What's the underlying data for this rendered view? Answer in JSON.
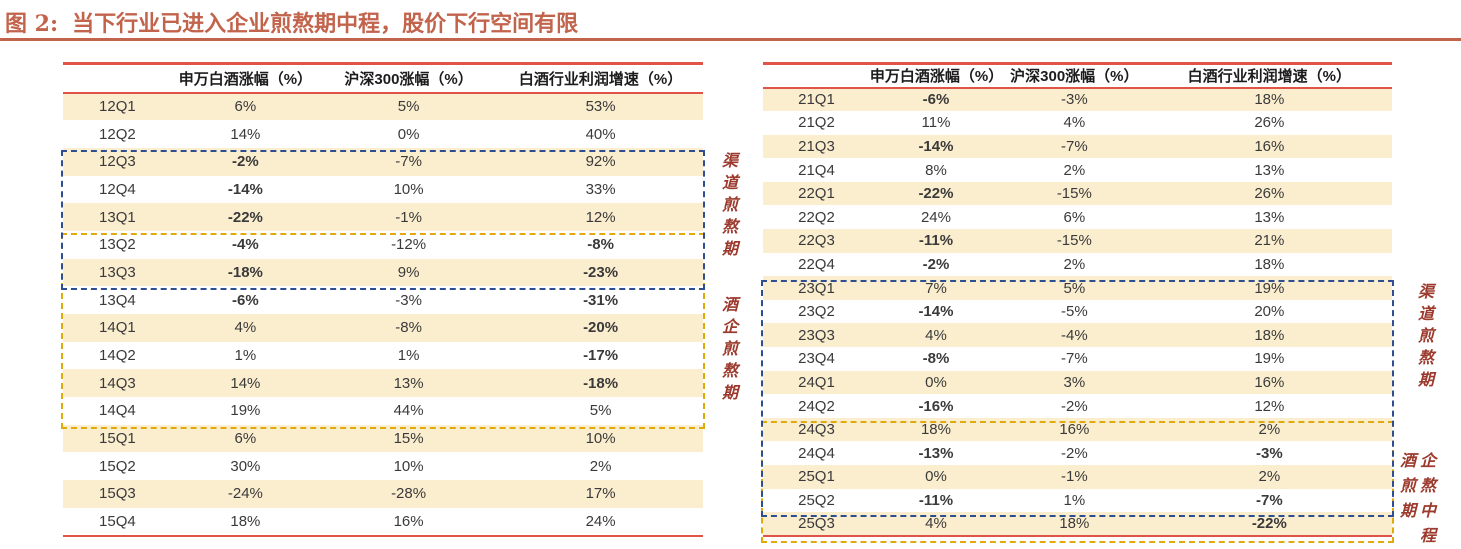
{
  "title": {
    "prefix": "图 2:",
    "text": "当下行业已进入企业煎熬期中程，股价下行空间有限"
  },
  "colors": {
    "accent": "#C2634B",
    "table_rule_red": "#DF5348",
    "row_cream": "#FBEECF",
    "negative_red": "#F70A0A",
    "box_blue": "#2D4F90",
    "box_yellow": "#E2A90C",
    "side_label_red": "#9C3A2E",
    "cell_text": "#3A3A3A"
  },
  "annotations": {
    "left_channel_label": "渠道煎熬期",
    "left_enterprise_label": "酒企煎熬期",
    "right_channel_label": "渠道煎熬期",
    "right_mid_label_lines": [
      "酒企",
      "煎熬",
      "期中",
      "程"
    ]
  },
  "left_table": {
    "headers": [
      "申万白酒涨幅（%）",
      "沪深300涨幅（%）",
      "白酒行业利润增速（%）"
    ],
    "rows": [
      {
        "q": "12Q1",
        "v": [
          "6%",
          "5%",
          "53%"
        ],
        "r": [
          0,
          0,
          0
        ]
      },
      {
        "q": "12Q2",
        "v": [
          "14%",
          "0%",
          "40%"
        ],
        "r": [
          0,
          0,
          0
        ]
      },
      {
        "q": "12Q3",
        "v": [
          "-2%",
          "-7%",
          "92%"
        ],
        "r": [
          1,
          0,
          0
        ]
      },
      {
        "q": "12Q4",
        "v": [
          "-14%",
          "10%",
          "33%"
        ],
        "r": [
          1,
          0,
          0
        ]
      },
      {
        "q": "13Q1",
        "v": [
          "-22%",
          "-1%",
          "12%"
        ],
        "r": [
          1,
          0,
          0
        ]
      },
      {
        "q": "13Q2",
        "v": [
          "-4%",
          "-12%",
          "-8%"
        ],
        "r": [
          1,
          0,
          1
        ]
      },
      {
        "q": "13Q3",
        "v": [
          "-18%",
          "9%",
          "-23%"
        ],
        "r": [
          1,
          0,
          1
        ]
      },
      {
        "q": "13Q4",
        "v": [
          "-6%",
          "-3%",
          "-31%"
        ],
        "r": [
          1,
          0,
          1
        ]
      },
      {
        "q": "14Q1",
        "v": [
          "4%",
          "-8%",
          "-20%"
        ],
        "r": [
          0,
          0,
          1
        ]
      },
      {
        "q": "14Q2",
        "v": [
          "1%",
          "1%",
          "-17%"
        ],
        "r": [
          0,
          0,
          1
        ]
      },
      {
        "q": "14Q3",
        "v": [
          "14%",
          "13%",
          "-18%"
        ],
        "r": [
          0,
          0,
          1
        ]
      },
      {
        "q": "14Q4",
        "v": [
          "19%",
          "44%",
          "5%"
        ],
        "r": [
          0,
          0,
          0
        ]
      },
      {
        "q": "15Q1",
        "v": [
          "6%",
          "15%",
          "10%"
        ],
        "r": [
          0,
          0,
          0
        ]
      },
      {
        "q": "15Q2",
        "v": [
          "30%",
          "10%",
          "2%"
        ],
        "r": [
          0,
          0,
          0
        ]
      },
      {
        "q": "15Q3",
        "v": [
          "-24%",
          "-28%",
          "17%"
        ],
        "r": [
          0,
          0,
          0
        ]
      },
      {
        "q": "15Q4",
        "v": [
          "18%",
          "16%",
          "24%"
        ],
        "r": [
          0,
          0,
          0
        ]
      }
    ]
  },
  "right_table": {
    "headers": [
      "申万白酒涨幅（%）",
      "沪深300涨幅（%）",
      "白酒行业利润增速（%）"
    ],
    "rows": [
      {
        "q": "21Q1",
        "v": [
          "-6%",
          "-3%",
          "18%"
        ],
        "r": [
          1,
          0,
          0
        ]
      },
      {
        "q": "21Q2",
        "v": [
          "11%",
          "4%",
          "26%"
        ],
        "r": [
          0,
          0,
          0
        ]
      },
      {
        "q": "21Q3",
        "v": [
          "-14%",
          "-7%",
          "16%"
        ],
        "r": [
          1,
          0,
          0
        ]
      },
      {
        "q": "21Q4",
        "v": [
          "8%",
          "2%",
          "13%"
        ],
        "r": [
          0,
          0,
          0
        ]
      },
      {
        "q": "22Q1",
        "v": [
          "-22%",
          "-15%",
          "26%"
        ],
        "r": [
          1,
          0,
          0
        ]
      },
      {
        "q": "22Q2",
        "v": [
          "24%",
          "6%",
          "13%"
        ],
        "r": [
          0,
          0,
          0
        ]
      },
      {
        "q": "22Q3",
        "v": [
          "-11%",
          "-15%",
          "21%"
        ],
        "r": [
          1,
          0,
          0
        ]
      },
      {
        "q": "22Q4",
        "v": [
          "-2%",
          "2%",
          "18%"
        ],
        "r": [
          1,
          0,
          0
        ]
      },
      {
        "q": "23Q1",
        "v": [
          "7%",
          "5%",
          "19%"
        ],
        "r": [
          0,
          0,
          0
        ]
      },
      {
        "q": "23Q2",
        "v": [
          "-14%",
          "-5%",
          "20%"
        ],
        "r": [
          1,
          0,
          0
        ]
      },
      {
        "q": "23Q3",
        "v": [
          "4%",
          "-4%",
          "18%"
        ],
        "r": [
          0,
          0,
          0
        ]
      },
      {
        "q": "23Q4",
        "v": [
          "-8%",
          "-7%",
          "19%"
        ],
        "r": [
          1,
          0,
          0
        ]
      },
      {
        "q": "24Q1",
        "v": [
          "0%",
          "3%",
          "16%"
        ],
        "r": [
          0,
          0,
          0
        ]
      },
      {
        "q": "24Q2",
        "v": [
          "-16%",
          "-2%",
          "12%"
        ],
        "r": [
          1,
          0,
          0
        ]
      },
      {
        "q": "24Q3",
        "v": [
          "18%",
          "16%",
          "2%"
        ],
        "r": [
          0,
          0,
          0
        ]
      },
      {
        "q": "24Q4",
        "v": [
          "-13%",
          "-2%",
          "-3%"
        ],
        "r": [
          1,
          0,
          1
        ]
      },
      {
        "q": "25Q1",
        "v": [
          "0%",
          "-1%",
          "2%"
        ],
        "r": [
          0,
          0,
          0
        ]
      },
      {
        "q": "25Q2",
        "v": [
          "-11%",
          "1%",
          "-7%"
        ],
        "r": [
          1,
          0,
          1
        ]
      },
      {
        "q": "25Q3",
        "v": [
          "4%",
          "18%",
          "-22%"
        ],
        "r": [
          0,
          0,
          1
        ]
      }
    ]
  }
}
